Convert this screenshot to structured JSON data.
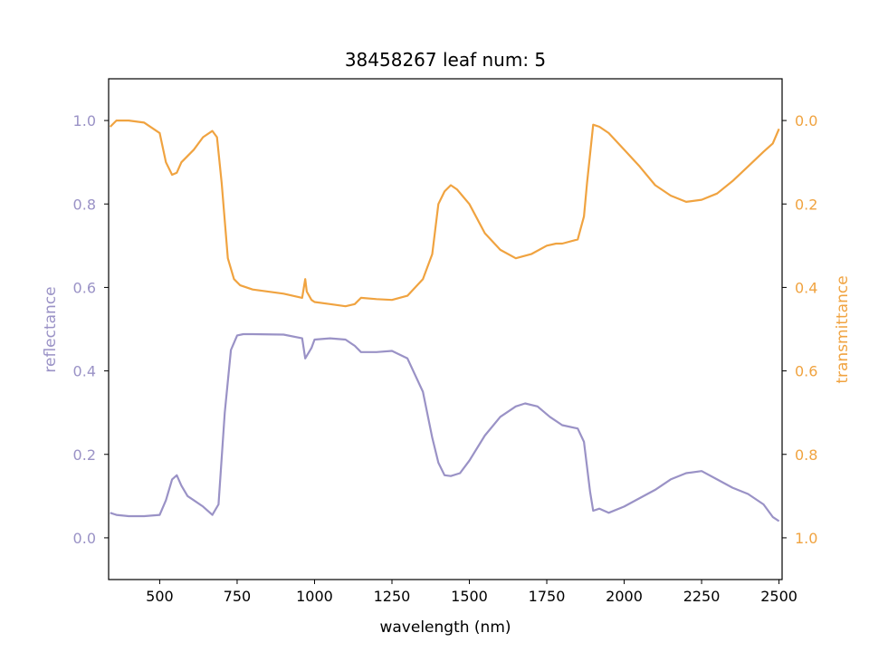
{
  "chart_data": {
    "type": "line",
    "title": "38458267 leaf num: 5",
    "xlabel": "wavelength (nm)",
    "xlim": [
      335,
      2510
    ],
    "x_ticks": [
      500,
      750,
      1000,
      1250,
      1500,
      1750,
      2000,
      2250,
      2500
    ],
    "colors": {
      "reflectance": "#9a92c6",
      "transmittance": "#f0a340"
    },
    "y_left": {
      "label": "reflectance",
      "lim": [
        -0.1,
        1.1
      ],
      "ticks": [
        0.0,
        0.2,
        0.4,
        0.6,
        0.8,
        1.0
      ],
      "tick_labels": [
        "0.0",
        "0.2",
        "0.4",
        "0.6",
        "0.8",
        "1.0"
      ]
    },
    "y_right": {
      "label": "transmittance",
      "inverted": true,
      "lim": [
        1.1,
        -0.1
      ],
      "ticks": [
        0.0,
        0.2,
        0.4,
        0.6,
        0.8,
        1.0
      ],
      "tick_labels": [
        "0.0",
        "0.2",
        "0.4",
        "0.6",
        "0.8",
        "1.0"
      ]
    },
    "series": [
      {
        "name": "reflectance",
        "axis": "left",
        "x": [
          340,
          360,
          400,
          450,
          500,
          520,
          540,
          555,
          570,
          590,
          610,
          640,
          670,
          690,
          710,
          730,
          750,
          770,
          800,
          900,
          960,
          970,
          990,
          1000,
          1050,
          1100,
          1130,
          1150,
          1200,
          1250,
          1300,
          1350,
          1380,
          1400,
          1420,
          1440,
          1470,
          1500,
          1550,
          1600,
          1650,
          1680,
          1720,
          1760,
          1800,
          1850,
          1870,
          1890,
          1900,
          1920,
          1950,
          2000,
          2050,
          2100,
          2150,
          2200,
          2250,
          2300,
          2350,
          2400,
          2450,
          2480,
          2500
        ],
        "y": [
          0.06,
          0.055,
          0.052,
          0.052,
          0.055,
          0.09,
          0.14,
          0.15,
          0.125,
          0.1,
          0.09,
          0.075,
          0.055,
          0.08,
          0.3,
          0.45,
          0.485,
          0.488,
          0.488,
          0.487,
          0.478,
          0.43,
          0.455,
          0.475,
          0.478,
          0.475,
          0.46,
          0.445,
          0.445,
          0.448,
          0.43,
          0.35,
          0.24,
          0.18,
          0.15,
          0.148,
          0.155,
          0.185,
          0.245,
          0.29,
          0.315,
          0.322,
          0.315,
          0.29,
          0.27,
          0.262,
          0.23,
          0.11,
          0.065,
          0.07,
          0.06,
          0.075,
          0.095,
          0.115,
          0.14,
          0.155,
          0.16,
          0.14,
          0.12,
          0.105,
          0.08,
          0.05,
          0.04
        ]
      },
      {
        "name": "transmittance",
        "axis": "right",
        "x": [
          340,
          360,
          400,
          450,
          500,
          520,
          540,
          555,
          570,
          590,
          610,
          640,
          670,
          685,
          700,
          720,
          740,
          760,
          800,
          900,
          960,
          970,
          975,
          990,
          1000,
          1050,
          1100,
          1130,
          1150,
          1200,
          1250,
          1300,
          1350,
          1380,
          1400,
          1420,
          1440,
          1460,
          1500,
          1550,
          1600,
          1650,
          1700,
          1750,
          1780,
          1800,
          1850,
          1870,
          1880,
          1890,
          1900,
          1920,
          1950,
          2000,
          2050,
          2100,
          2150,
          2200,
          2250,
          2300,
          2350,
          2400,
          2450,
          2480,
          2500
        ],
        "y": [
          0.015,
          0.0,
          0.0,
          0.005,
          0.03,
          0.1,
          0.13,
          0.125,
          0.1,
          0.085,
          0.07,
          0.04,
          0.025,
          0.04,
          0.15,
          0.33,
          0.38,
          0.395,
          0.405,
          0.415,
          0.425,
          0.38,
          0.41,
          0.43,
          0.435,
          0.44,
          0.445,
          0.44,
          0.425,
          0.428,
          0.43,
          0.42,
          0.38,
          0.32,
          0.2,
          0.17,
          0.155,
          0.165,
          0.2,
          0.27,
          0.31,
          0.33,
          0.32,
          0.3,
          0.295,
          0.295,
          0.285,
          0.23,
          0.15,
          0.08,
          0.01,
          0.015,
          0.03,
          0.07,
          0.11,
          0.155,
          0.18,
          0.195,
          0.19,
          0.175,
          0.145,
          0.11,
          0.075,
          0.055,
          0.02
        ]
      }
    ]
  }
}
